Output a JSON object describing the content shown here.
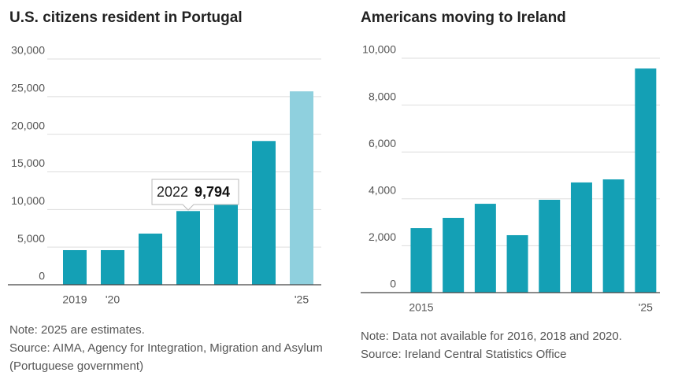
{
  "chart_data": [
    {
      "type": "bar",
      "title": "U.S. citizens resident in Portugal",
      "categories": [
        "2019",
        "'20",
        null,
        null,
        null,
        null,
        "'25"
      ],
      "values": [
        4600,
        4600,
        6800,
        9794,
        14000,
        19100,
        25700
      ],
      "colors": [
        "#14a0b5",
        "#14a0b5",
        "#14a0b5",
        "#14a0b5",
        "#14a0b5",
        "#14a0b5",
        "#8fd0de"
      ],
      "ylim": [
        0,
        30000
      ],
      "yticks": [
        0,
        {
          "value": 5000,
          "label": "5,000"
        },
        {
          "value": 10000,
          "label": "10,000"
        },
        {
          "value": 15000,
          "label": "15,000"
        },
        {
          "value": 20000,
          "label": "20,000"
        },
        {
          "value": 25000,
          "label": "25,000"
        },
        {
          "value": 30000,
          "label": "30,000"
        }
      ],
      "grid": true,
      "tooltip": {
        "label": "2022",
        "value_label": "9,794"
      },
      "notes": [
        "Note: 2025 are estimates.",
        "Source: AIMA, Agency for Integration, Migration and Asylum (Portuguese government)"
      ]
    },
    {
      "type": "bar",
      "title": "Americans moving to Ireland",
      "categories": [
        "2015",
        null,
        null,
        null,
        null,
        null,
        null,
        "'25"
      ],
      "values": [
        2750,
        3190,
        3790,
        2450,
        3960,
        4700,
        4830,
        9560
      ],
      "colors": [
        "#14a0b5",
        "#14a0b5",
        "#14a0b5",
        "#14a0b5",
        "#14a0b5",
        "#14a0b5",
        "#14a0b5",
        "#14a0b5"
      ],
      "ylim": [
        0,
        10000
      ],
      "yticks": [
        0,
        {
          "value": 2000,
          "label": "2,000"
        },
        {
          "value": 4000,
          "label": "4,000"
        },
        {
          "value": 6000,
          "label": "6,000"
        },
        {
          "value": 8000,
          "label": "8,000"
        },
        {
          "value": 10000,
          "label": "10,000"
        }
      ],
      "grid": true,
      "notes": [
        "Note: Data not available for 2016, 2018 and 2020.",
        "Source: Ireland Central Statistics Office"
      ]
    }
  ]
}
